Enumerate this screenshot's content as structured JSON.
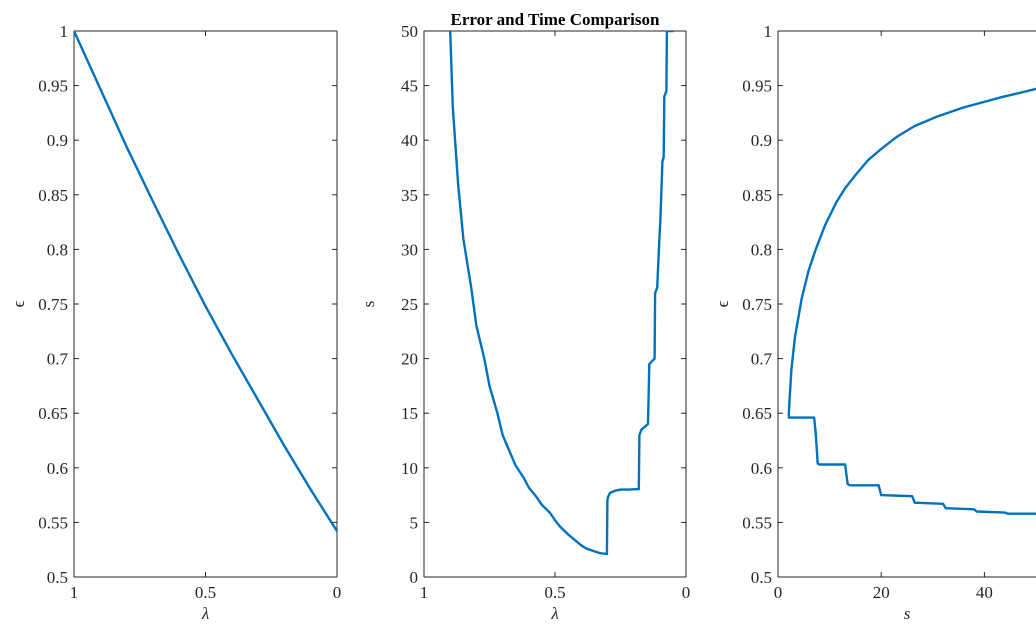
{
  "chart_data": [
    {
      "type": "line",
      "title": "",
      "xlabel": "λ",
      "ylabel": "ϵ",
      "xlim": [
        1,
        0
      ],
      "x_reversed": true,
      "ylim": [
        0.5,
        1
      ],
      "xticks": [
        1,
        0.5,
        0
      ],
      "xticklabels": [
        "1",
        "0.5",
        "0"
      ],
      "yticks": [
        0.5,
        0.55,
        0.6,
        0.65,
        0.7,
        0.75,
        0.8,
        0.85,
        0.9,
        0.95,
        1
      ],
      "yticklabels": [
        "0.5",
        "0.55",
        "0.6",
        "0.65",
        "0.7",
        "0.75",
        "0.8",
        "0.85",
        "0.9",
        "0.95",
        "1"
      ],
      "grid": false,
      "series": [
        {
          "color": "#0072BD",
          "x": [
            1,
            0.9,
            0.8,
            0.7,
            0.6,
            0.5,
            0.4,
            0.3,
            0.2,
            0.1,
            0
          ],
          "y": [
            1,
            0.947,
            0.894,
            0.844,
            0.795,
            0.748,
            0.704,
            0.662,
            0.62,
            0.58,
            0.542
          ]
        }
      ]
    },
    {
      "type": "line",
      "title": "Error and Time Comparison",
      "xlabel": "λ",
      "ylabel": "s",
      "xlim": [
        1,
        0
      ],
      "x_reversed": true,
      "ylim": [
        0,
        50
      ],
      "xticks": [
        1,
        0.5,
        0
      ],
      "xticklabels": [
        "1",
        "0.5",
        "0"
      ],
      "yticks": [
        0,
        5,
        10,
        15,
        20,
        25,
        30,
        35,
        40,
        45,
        50
      ],
      "yticklabels": [
        "0",
        "5",
        "10",
        "15",
        "20",
        "25",
        "30",
        "35",
        "40",
        "45",
        "50"
      ],
      "grid": false,
      "series": [
        {
          "color": "#0072BD",
          "x": [
            0.9,
            0.89,
            0.87,
            0.85,
            0.82,
            0.8,
            0.77,
            0.75,
            0.72,
            0.7,
            0.67,
            0.65,
            0.62,
            0.6,
            0.57,
            0.55,
            0.52,
            0.5,
            0.48,
            0.45,
            0.42,
            0.4,
            0.38,
            0.35,
            0.33,
            0.302,
            0.3,
            0.298,
            0.29,
            0.27,
            0.25,
            0.22,
            0.18,
            0.178,
            0.17,
            0.145,
            0.14,
            0.12,
            0.118,
            0.11,
            0.1,
            0.098,
            0.09,
            0.085,
            0.083,
            0.075,
            0.073,
            0.068,
            0.067,
            0.064,
            0.062,
            0.06,
            0.058,
            0.055,
            0.054,
            0.052,
            0.051,
            0.05
          ],
          "y": [
            50,
            43,
            36,
            31,
            26.5,
            23,
            20,
            17.5,
            15,
            13,
            11.3,
            10.2,
            9.1,
            8.2,
            7.3,
            6.6,
            5.9,
            5.2,
            4.6,
            3.9,
            3.3,
            2.9,
            2.6,
            2.35,
            2.2,
            2.1,
            7,
            7.3,
            7.7,
            7.9,
            8,
            8,
            8.05,
            13,
            13.5,
            14,
            19.5,
            20,
            26,
            26.5,
            31.8,
            32.5,
            38,
            38.5,
            44,
            44.5,
            50,
            50,
            50,
            50,
            50,
            50,
            50,
            50,
            50,
            50,
            50,
            50
          ]
        }
      ]
    },
    {
      "type": "line",
      "title": "",
      "xlabel": "s",
      "ylabel": "ϵ",
      "xlim": [
        0,
        50
      ],
      "ylim": [
        0.5,
        1
      ],
      "xticks": [
        0,
        20,
        40
      ],
      "xticklabels": [
        "0",
        "20",
        "40"
      ],
      "yticks": [
        0.5,
        0.55,
        0.6,
        0.65,
        0.7,
        0.75,
        0.8,
        0.85,
        0.9,
        0.95,
        1
      ],
      "yticklabels": [
        "0.5",
        "0.55",
        "0.6",
        "0.65",
        "0.7",
        "0.75",
        "0.8",
        "0.85",
        "0.9",
        "0.95",
        "1"
      ],
      "grid": false,
      "series": [
        {
          "color": "#0072BD",
          "x": [
            2.1,
            2.2,
            2.6,
            3.3,
            4.6,
            5.9,
            7.3,
            9.1,
            11.3,
            13,
            15,
            17.5,
            20,
            23,
            26.5,
            31,
            36,
            43,
            50
          ],
          "y": [
            0.648,
            0.66,
            0.69,
            0.72,
            0.755,
            0.78,
            0.8,
            0.822,
            0.843,
            0.856,
            0.868,
            0.882,
            0.892,
            0.903,
            0.913,
            0.922,
            0.93,
            0.939,
            0.947
          ]
        },
        {
          "color": "#0072BD",
          "x": [
            2.1,
            7,
            7.3,
            7.7,
            8,
            13,
            13.5,
            14,
            19.5,
            20,
            26,
            26.5,
            32,
            32.5,
            38,
            38.5,
            44,
            44.5,
            50
          ],
          "y": [
            0.646,
            0.646,
            0.632,
            0.604,
            0.603,
            0.603,
            0.585,
            0.584,
            0.584,
            0.575,
            0.574,
            0.568,
            0.567,
            0.563,
            0.562,
            0.56,
            0.559,
            0.558,
            0.558
          ]
        }
      ]
    }
  ]
}
